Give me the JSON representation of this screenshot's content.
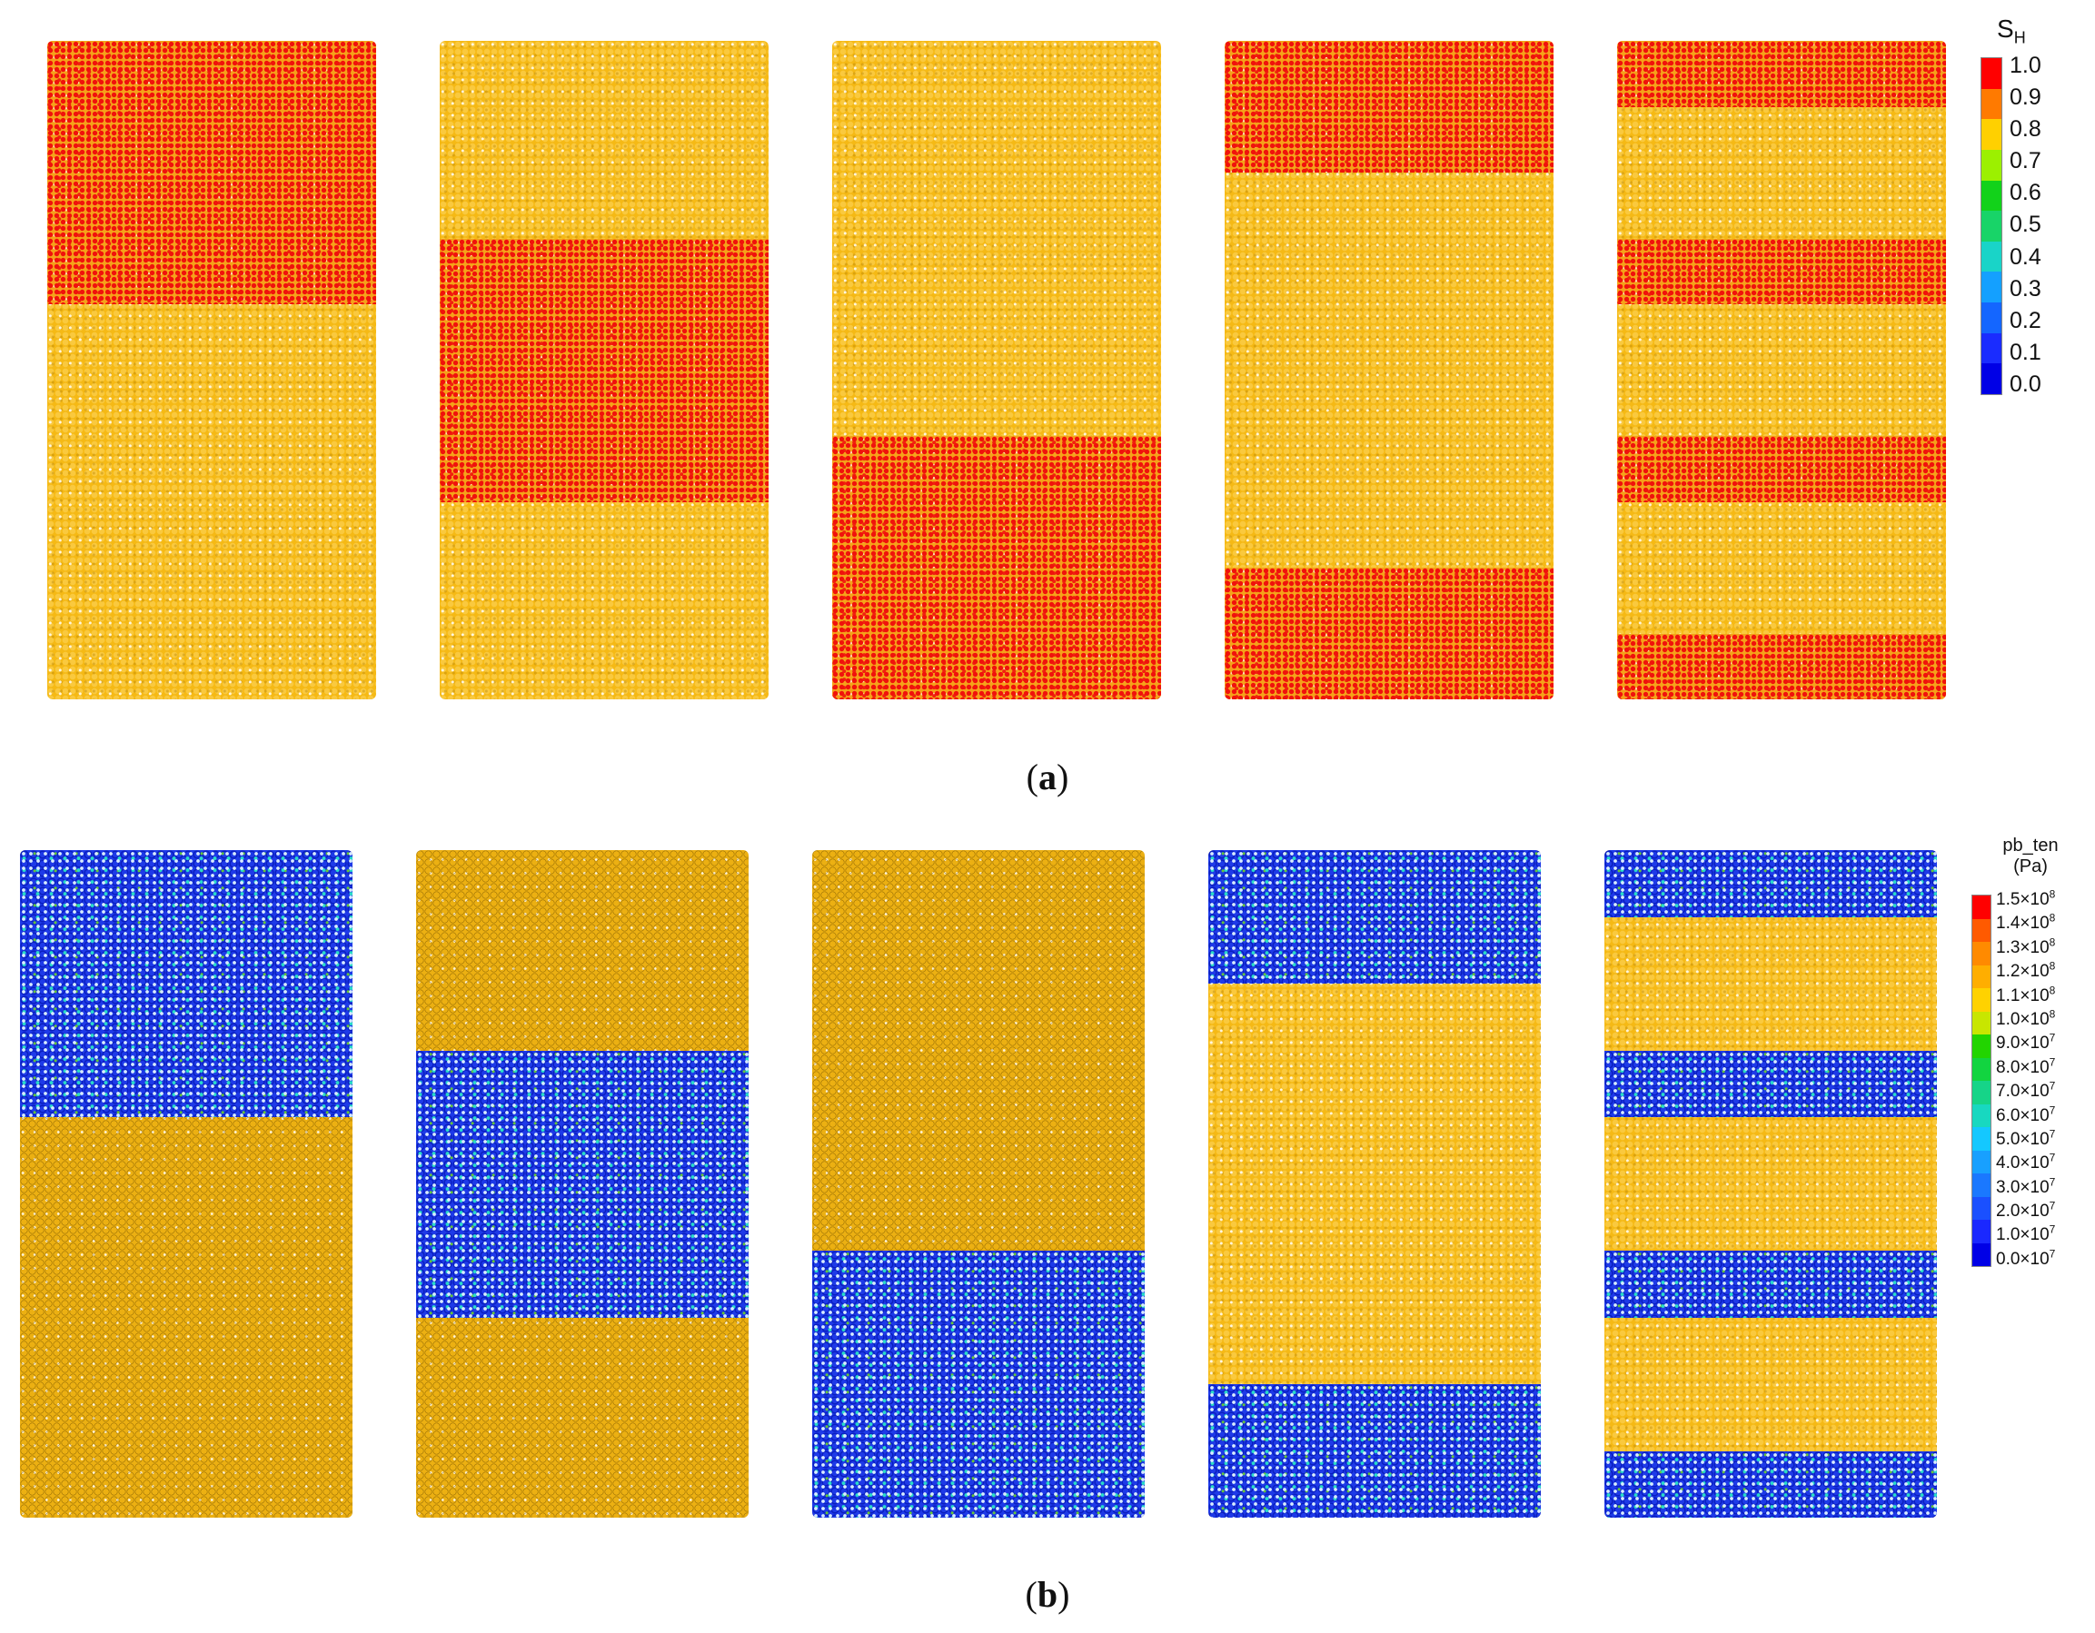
{
  "figure": {
    "panel_a": {
      "label_open": "(",
      "label_letter": "a",
      "label_close": ")",
      "legend": {
        "title_main": "S",
        "title_sub": "H",
        "entries": [
          "1.0",
          "0.9",
          "0.8",
          "0.7",
          "0.6",
          "0.5",
          "0.4",
          "0.3",
          "0.2",
          "0.1",
          "0.0"
        ],
        "colors": [
          "#ff0000",
          "#ff7a00",
          "#ffd000",
          "#9cf000",
          "#12d21a",
          "#18d468",
          "#19d4c8",
          "#14a0ff",
          "#1466ff",
          "#1a2cff",
          "#0000e6"
        ]
      },
      "samples": [
        {
          "bands": [
            [
              0.0,
              0.4
            ]
          ]
        },
        {
          "bands": [
            [
              0.3,
              0.7
            ]
          ]
        },
        {
          "bands": [
            [
              0.6,
              1.0
            ]
          ]
        },
        {
          "bands": [
            [
              0.0,
              0.2
            ],
            [
              0.8,
              1.0
            ]
          ]
        },
        {
          "bands": [
            [
              0.0,
              0.1
            ],
            [
              0.3,
              0.4
            ],
            [
              0.6,
              0.7
            ],
            [
              0.9,
              1.0
            ]
          ]
        }
      ]
    },
    "panel_b": {
      "label_open": "(",
      "label_letter": "b",
      "label_close": ")",
      "legend": {
        "title_line1": "pb_ten",
        "title_line2": "(Pa)",
        "entries": [
          {
            "mantissa": "1.5×10",
            "exp": "8"
          },
          {
            "mantissa": "1.4×10",
            "exp": "8"
          },
          {
            "mantissa": "1.3×10",
            "exp": "8"
          },
          {
            "mantissa": "1.2×10",
            "exp": "8"
          },
          {
            "mantissa": "1.1×10",
            "exp": "8"
          },
          {
            "mantissa": "1.0×10",
            "exp": "8"
          },
          {
            "mantissa": "9.0×10",
            "exp": "7"
          },
          {
            "mantissa": "8.0×10",
            "exp": "7"
          },
          {
            "mantissa": "7.0×10",
            "exp": "7"
          },
          {
            "mantissa": "6.0×10",
            "exp": "7"
          },
          {
            "mantissa": "5.0×10",
            "exp": "7"
          },
          {
            "mantissa": "4.0×10",
            "exp": "7"
          },
          {
            "mantissa": "3.0×10",
            "exp": "7"
          },
          {
            "mantissa": "2.0×10",
            "exp": "7"
          },
          {
            "mantissa": "1.0×10",
            "exp": "7"
          },
          {
            "mantissa": "0.0×10",
            "exp": "7"
          }
        ],
        "colors": [
          "#ff0000",
          "#ff5a00",
          "#ff8a00",
          "#ffae00",
          "#ffd200",
          "#c8e600",
          "#22d400",
          "#12d440",
          "#16d488",
          "#18d8c0",
          "#14c8ff",
          "#18a0ff",
          "#1a78ff",
          "#1a50ff",
          "#1a28ff",
          "#0000e6"
        ]
      },
      "samples": [
        {
          "bands": [
            [
              0.0,
              0.4
            ]
          ]
        },
        {
          "bands": [
            [
              0.3,
              0.7
            ]
          ]
        },
        {
          "bands": [
            [
              0.6,
              1.0
            ]
          ]
        },
        {
          "bands": [
            [
              0.0,
              0.2
            ],
            [
              0.8,
              1.0
            ]
          ]
        },
        {
          "bands": [
            [
              0.0,
              0.1
            ],
            [
              0.3,
              0.4
            ],
            [
              0.6,
              0.7
            ],
            [
              0.9,
              1.0
            ]
          ]
        }
      ]
    }
  }
}
